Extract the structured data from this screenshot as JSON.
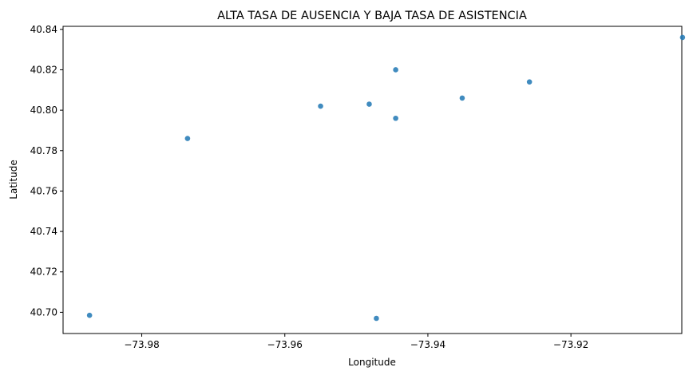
{
  "chart_data": {
    "type": "scatter",
    "title": "ALTA TASA DE AUSENCIA Y BAJA TASA DE ASISTENCIA",
    "xlabel": "Longitude",
    "ylabel": "Latitude",
    "xlim": [
      -73.991,
      -73.9045
    ],
    "ylim": [
      40.6895,
      40.8415
    ],
    "xticks": [
      -73.98,
      -73.96,
      -73.94,
      -73.92
    ],
    "xtick_labels": [
      "−73.98",
      "−73.96",
      "−73.94",
      "−73.92"
    ],
    "yticks": [
      40.7,
      40.72,
      40.74,
      40.76,
      40.78,
      40.8,
      40.82,
      40.84
    ],
    "ytick_labels": [
      "40.70",
      "40.72",
      "40.74",
      "40.76",
      "40.78",
      "40.80",
      "40.82",
      "40.84"
    ],
    "grid": false,
    "point_color": "#1f77b4",
    "points": [
      {
        "x": -73.9873,
        "y": 40.6985
      },
      {
        "x": -73.9736,
        "y": 40.786
      },
      {
        "x": -73.955,
        "y": 40.802
      },
      {
        "x": -73.9482,
        "y": 40.803
      },
      {
        "x": -73.9472,
        "y": 40.697
      },
      {
        "x": -73.9445,
        "y": 40.82
      },
      {
        "x": -73.9445,
        "y": 40.796
      },
      {
        "x": -73.9352,
        "y": 40.806
      },
      {
        "x": -73.9258,
        "y": 40.814
      },
      {
        "x": -73.9044,
        "y": 40.836
      }
    ]
  }
}
